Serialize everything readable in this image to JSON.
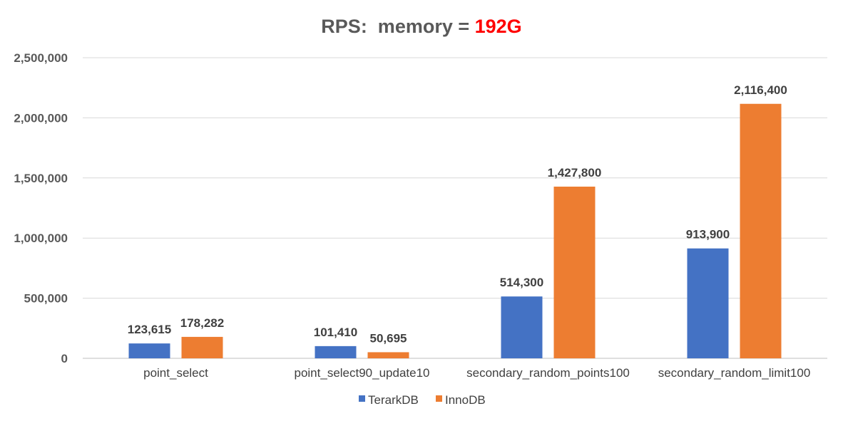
{
  "chart_data": {
    "type": "bar",
    "title": "RPS:  memory = ",
    "title_highlight": "192G",
    "title_highlight_color": "#ff0000",
    "categories": [
      "point_select",
      "point_select90_update10",
      "secondary_random_points100",
      "secondary_random_limit100"
    ],
    "series": [
      {
        "name": "TerarkDB",
        "color": "#4472c4",
        "values": [
          123615,
          101410,
          514300,
          913900
        ],
        "labels": [
          "123,615",
          "101,410",
          "514,300",
          "913,900"
        ]
      },
      {
        "name": "InnoDB",
        "color": "#ed7d31",
        "values": [
          178282,
          50695,
          1427800,
          2116400
        ],
        "labels": [
          "178,282",
          "50,695",
          "1,427,800",
          "2,116,400"
        ]
      }
    ],
    "yticks": [
      0,
      500000,
      1000000,
      1500000,
      2000000,
      2500000
    ],
    "ytick_labels": [
      "0",
      "500,000",
      "1,000,000",
      "1,500,000",
      "2,000,000",
      "2,500,000"
    ],
    "ylim": [
      0,
      2500000
    ],
    "xlabel": "",
    "ylabel": "",
    "grid": true,
    "legend_position": "bottom"
  }
}
